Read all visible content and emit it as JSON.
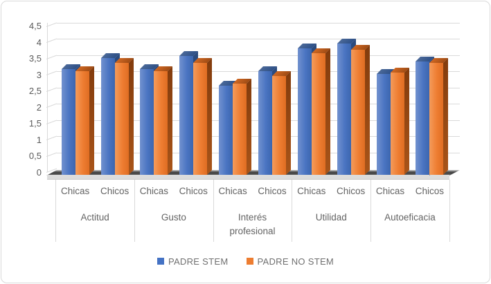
{
  "chart_data": {
    "type": "bar",
    "style": "3d-clustered-column",
    "title": "",
    "categories": [
      "Actitud",
      "Gusto",
      "Interés profesional",
      "Utilidad",
      "Autoeficacia"
    ],
    "sub_categories": [
      "Chicas",
      "Chicos"
    ],
    "series": [
      {
        "name": "PADRE STEM",
        "color": "#4472C4",
        "values": [
          3.25,
          3.6,
          3.25,
          3.65,
          2.75,
          3.2,
          3.9,
          4.05,
          3.1,
          3.5
        ]
      },
      {
        "name": "PADRE NO STEM",
        "color": "#ED7D31",
        "values": [
          3.2,
          3.45,
          3.2,
          3.45,
          2.8,
          3.05,
          3.75,
          3.85,
          3.15,
          3.45
        ]
      }
    ],
    "y_axis": {
      "min": 0,
      "max": 4.5,
      "step": 0.5,
      "tick_labels": [
        "0",
        "0,5",
        "1",
        "1,5",
        "2",
        "2,5",
        "3",
        "3,5",
        "4",
        "4,5"
      ]
    },
    "legend_position": "bottom",
    "grid": true
  },
  "colors": {
    "gridline": "#d9d9d9",
    "axis_text": "#595959",
    "category_text": "#636363",
    "legend_text": "#6f6f6f",
    "floor_dark": "#454545"
  }
}
